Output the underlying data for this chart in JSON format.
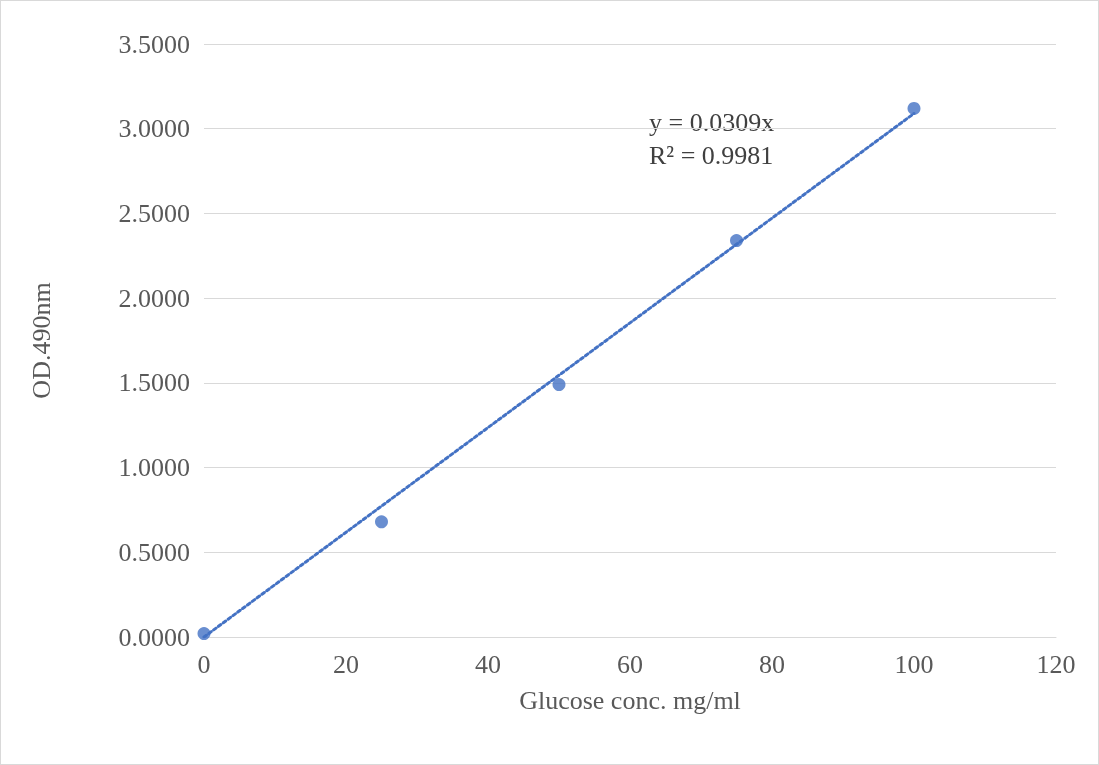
{
  "chart_data": {
    "type": "scatter",
    "xlabel": "Glucose conc. mg/ml",
    "ylabel": "OD.490nm",
    "x": [
      0,
      25,
      50,
      75,
      100
    ],
    "series": [
      {
        "color": "#4472c4",
        "marker": "circle",
        "values": [
          0.02,
          0.68,
          1.49,
          2.34,
          3.12
        ]
      },
      {
        "type": "line",
        "color": "#4472c4",
        "marker": "none",
        "line_style": "dotted",
        "x": [
          0,
          100
        ],
        "values": [
          0,
          3.09
        ]
      }
    ],
    "xlim": [
      0,
      120
    ],
    "xticks": [
      0,
      20,
      40,
      60,
      80,
      100,
      120
    ],
    "ylim": [
      0,
      3.5
    ],
    "yticks": [
      {
        "value": 0,
        "label": "0.0000"
      },
      {
        "value": 0.5,
        "label": "0.5000"
      },
      {
        "value": 1,
        "label": "1.0000"
      },
      {
        "value": 1.5,
        "label": "1.5000"
      },
      {
        "value": 2,
        "label": "2.0000"
      },
      {
        "value": 2.5,
        "label": "2.5000"
      },
      {
        "value": 3,
        "label": "3.0000"
      },
      {
        "value": 3.5,
        "label": "3.5000"
      }
    ],
    "grid": "y",
    "annotations": [
      "y = 0.0309x",
      "R² = 0.9981"
    ]
  }
}
